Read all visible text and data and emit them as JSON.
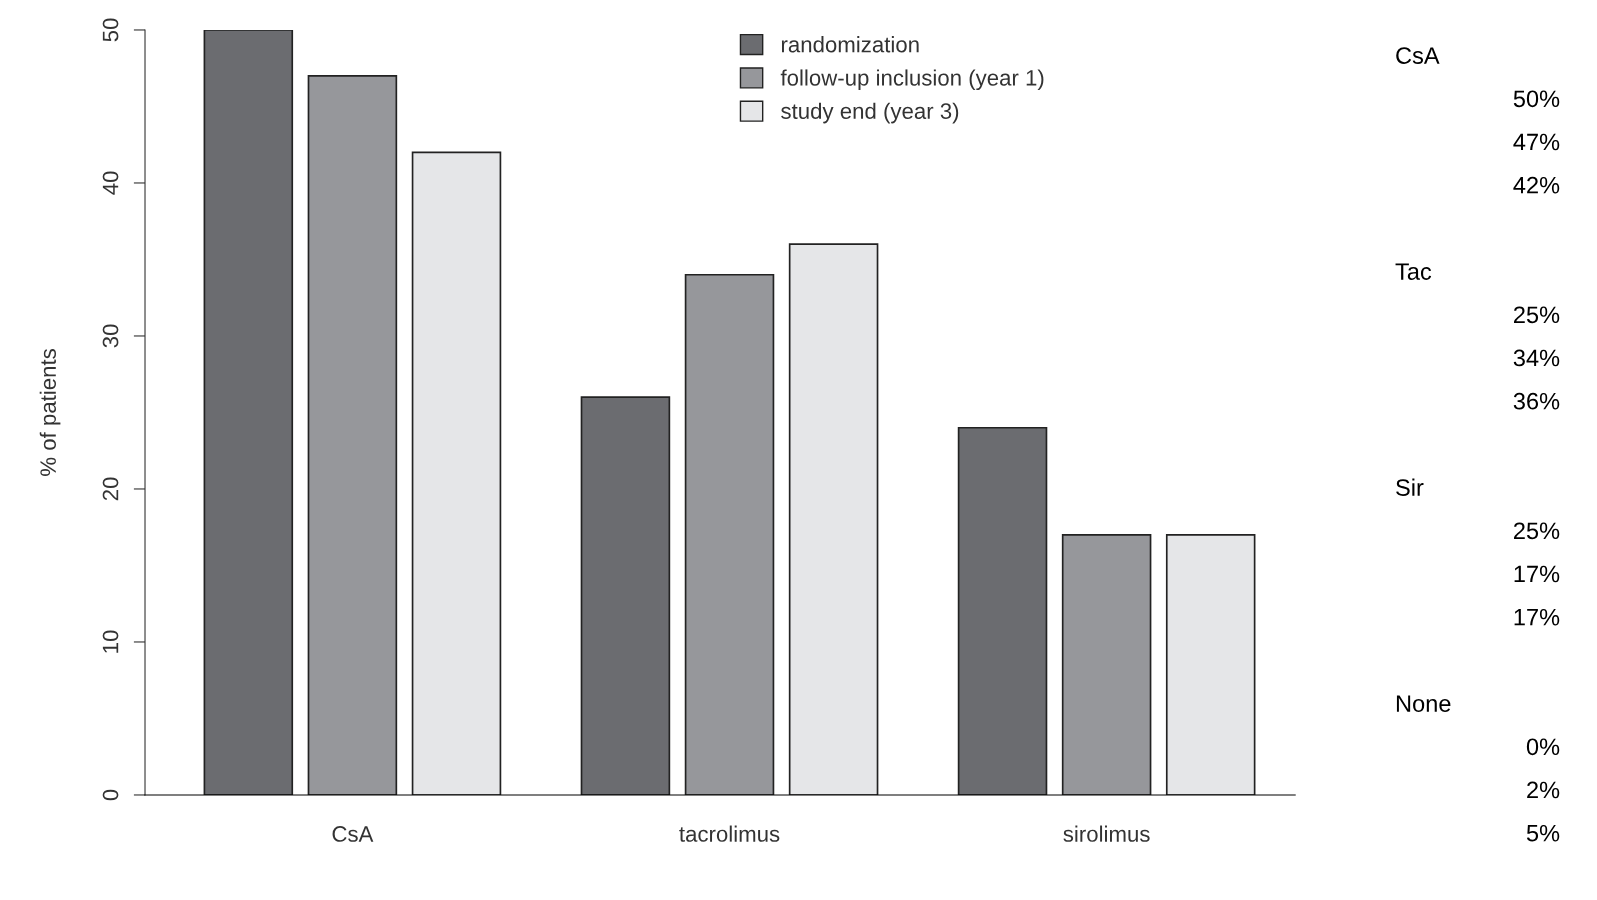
{
  "chart_data": [
    {
      "type": "bar",
      "ylabel": "% of patients",
      "categories": [
        "CsA",
        "tacrolimus",
        "sirolimus"
      ],
      "series": [
        {
          "name": "randomization",
          "color": "#6b6c70",
          "values": [
            50,
            26,
            24
          ]
        },
        {
          "name": "follow-up inclusion (year 1)",
          "color": "#96979b",
          "values": [
            47,
            34,
            17
          ]
        },
        {
          "name": "study end (year 3)",
          "color": "#e5e6e8",
          "values": [
            42,
            36,
            17
          ]
        }
      ],
      "ylim": [
        0,
        50
      ],
      "yticks": [
        0,
        10,
        20,
        30,
        40,
        50
      ],
      "grid": false,
      "legend": "top"
    },
    {
      "type": "other",
      "annotations": [
        "CsA",
        "50%",
        "47%",
        "42%",
        "Tac",
        "25%",
        "34%",
        "36%",
        "Sir",
        "25%",
        "17%",
        "17%",
        "None",
        "0%",
        "2%",
        "5%"
      ]
    }
  ]
}
